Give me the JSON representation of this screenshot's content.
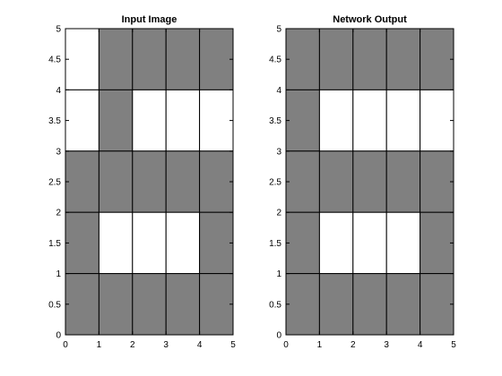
{
  "chart_data": [
    {
      "type": "heatmap",
      "title": "Input Image",
      "xlim": [
        0,
        5
      ],
      "ylim": [
        0,
        5
      ],
      "x_ticks": [
        "0",
        "1",
        "2",
        "3",
        "4",
        "5"
      ],
      "y_ticks": [
        "0",
        "0.5",
        "1",
        "1.5",
        "2",
        "2.5",
        "3",
        "3.5",
        "4",
        "4.5",
        "5"
      ],
      "grid": true,
      "colors": {
        "on": "#808080",
        "off": "#ffffff"
      },
      "rows_top_to_bottom": [
        [
          0,
          1,
          1,
          1,
          1
        ],
        [
          0,
          1,
          0,
          0,
          0
        ],
        [
          1,
          1,
          1,
          1,
          1
        ],
        [
          1,
          0,
          0,
          0,
          1
        ],
        [
          1,
          1,
          1,
          1,
          1
        ]
      ]
    },
    {
      "type": "heatmap",
      "title": "Network Output",
      "xlim": [
        0,
        5
      ],
      "ylim": [
        0,
        5
      ],
      "x_ticks": [
        "0",
        "1",
        "2",
        "3",
        "4",
        "5"
      ],
      "y_ticks": [
        "0",
        "0.5",
        "1",
        "1.5",
        "2",
        "2.5",
        "3",
        "3.5",
        "4",
        "4.5",
        "5"
      ],
      "grid": true,
      "colors": {
        "on": "#808080",
        "off": "#ffffff"
      },
      "rows_top_to_bottom": [
        [
          1,
          1,
          1,
          1,
          1
        ],
        [
          1,
          0,
          0,
          0,
          0
        ],
        [
          1,
          1,
          1,
          1,
          1
        ],
        [
          1,
          0,
          0,
          0,
          1
        ],
        [
          1,
          1,
          1,
          1,
          1
        ]
      ]
    }
  ]
}
